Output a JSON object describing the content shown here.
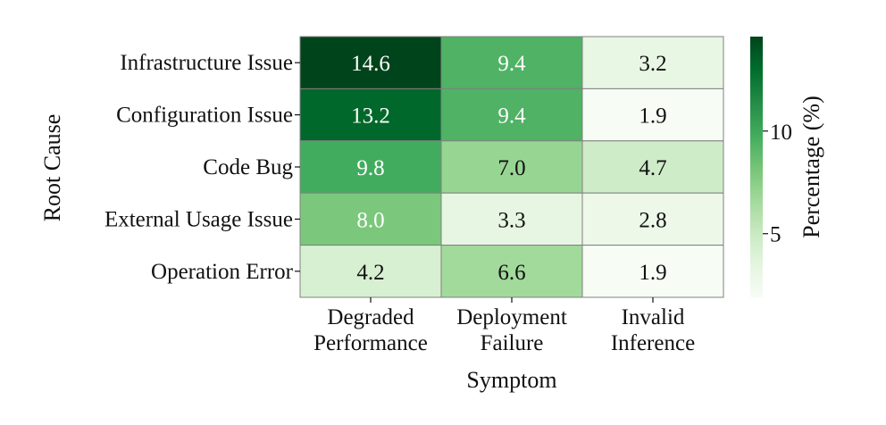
{
  "chart_data": {
    "type": "heatmap",
    "xlabel": "Symptom",
    "ylabel": "Root Cause",
    "x_categories": [
      [
        "Degraded",
        "Performance"
      ],
      [
        "Deployment",
        "Failure"
      ],
      [
        "Invalid",
        "Inference"
      ]
    ],
    "y_categories": [
      "Infrastructure Issue",
      "Configuration Issue",
      "Code Bug",
      "External Usage Issue",
      "Operation Error"
    ],
    "values": [
      [
        14.6,
        9.4,
        3.2
      ],
      [
        13.2,
        9.4,
        1.9
      ],
      [
        9.8,
        7.0,
        4.7
      ],
      [
        8.0,
        3.3,
        2.8
      ],
      [
        4.2,
        6.6,
        1.9
      ]
    ],
    "value_labels": [
      [
        "14.6",
        "9.4",
        "3.2"
      ],
      [
        "13.2",
        "9.4",
        "1.9"
      ],
      [
        "9.8",
        "7.0",
        "4.7"
      ],
      [
        "8.0",
        "3.3",
        "2.8"
      ],
      [
        "4.2",
        "6.6",
        "1.9"
      ]
    ],
    "colormap": "Greens",
    "colorbar": {
      "label": "Percentage (%)",
      "range": [
        1.9,
        14.6
      ],
      "ticks": [
        5,
        10
      ],
      "tick_labels": [
        "5",
        "10"
      ]
    }
  }
}
